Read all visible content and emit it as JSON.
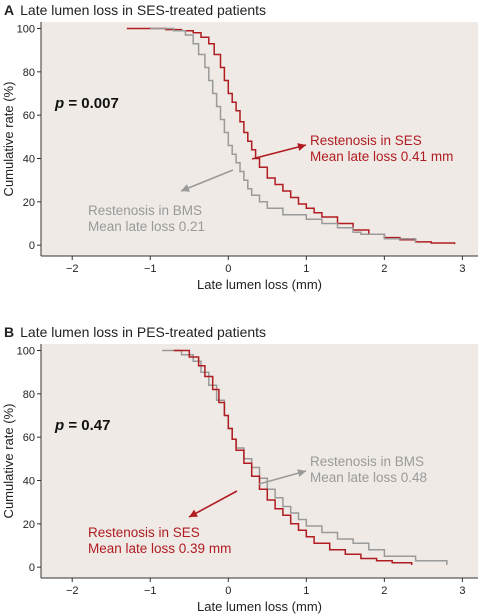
{
  "colors": {
    "ses": "#b01c22",
    "bms": "#9a9a9a",
    "background": "#efeae5"
  },
  "chart_data": [
    {
      "type": "line",
      "panel_letter": "A",
      "title": "Late lumen loss in SES-treated patients",
      "xlabel": "Late lumen loss (mm)",
      "ylabel": "Cumulative rate (%)",
      "xlim": [
        -2.4,
        3.2
      ],
      "ylim": [
        -5,
        103
      ],
      "x_ticks": [
        -2,
        -1,
        0,
        1,
        2,
        3
      ],
      "y_ticks": [
        0,
        20,
        40,
        60,
        80,
        100
      ],
      "p_symbol": "p",
      "p_text": "= 0.007",
      "series": [
        {
          "key": "ses",
          "color": "#b01c22",
          "x": [
            -1.3,
            -0.8,
            -0.6,
            -0.45,
            -0.35,
            -0.25,
            -0.18,
            -0.1,
            -0.05,
            0.0,
            0.05,
            0.1,
            0.15,
            0.2,
            0.25,
            0.3,
            0.35,
            0.4,
            0.5,
            0.6,
            0.7,
            0.8,
            0.9,
            1.0,
            1.1,
            1.2,
            1.4,
            1.6,
            1.8,
            2.0,
            2.2,
            2.4,
            2.6,
            2.9
          ],
          "y": [
            100,
            99.5,
            99,
            98,
            96,
            93,
            88,
            82,
            76,
            70,
            66,
            62,
            57,
            52,
            48,
            44,
            40,
            36,
            31,
            28,
            25,
            22,
            19,
            17,
            15,
            13,
            10,
            7,
            5,
            3.5,
            2.5,
            1.5,
            1,
            0.5
          ]
        },
        {
          "key": "bms",
          "color": "#9a9a9a",
          "x": [
            -1.0,
            -0.7,
            -0.55,
            -0.45,
            -0.38,
            -0.3,
            -0.25,
            -0.2,
            -0.15,
            -0.1,
            -0.05,
            0.0,
            0.05,
            0.1,
            0.15,
            0.2,
            0.25,
            0.3,
            0.4,
            0.5,
            0.7,
            1.0,
            1.2,
            1.4,
            1.6,
            1.7,
            2.0,
            2.4
          ],
          "y": [
            100,
            99,
            97,
            93,
            88,
            82,
            76,
            70,
            64,
            58,
            52,
            46,
            42,
            38,
            34,
            30,
            26,
            23,
            20,
            17,
            14,
            12,
            10,
            8,
            6,
            5,
            3,
            1
          ]
        }
      ],
      "annotations": [
        {
          "series": "ses",
          "lines": [
            "Restenosis in SES",
            "Mean late loss 0.41 mm"
          ]
        },
        {
          "series": "bms",
          "lines": [
            "Restenosis in BMS",
            "Mean late loss 0.21"
          ]
        }
      ]
    },
    {
      "type": "line",
      "panel_letter": "B",
      "title": "Late lumen loss in PES-treated patients",
      "xlabel": "Late lumen loss (mm)",
      "ylabel": "Cumulative rate (%)",
      "xlim": [
        -2.4,
        3.2
      ],
      "ylim": [
        -5,
        103
      ],
      "x_ticks": [
        -2,
        -1,
        0,
        1,
        2,
        3
      ],
      "y_ticks": [
        0,
        20,
        40,
        60,
        80,
        100
      ],
      "p_symbol": "p",
      "p_text": "= 0.47",
      "series": [
        {
          "key": "bms",
          "color": "#9a9a9a",
          "x": [
            -0.85,
            -0.6,
            -0.45,
            -0.35,
            -0.25,
            -0.15,
            -0.05,
            0.0,
            0.05,
            0.1,
            0.2,
            0.3,
            0.4,
            0.5,
            0.6,
            0.7,
            0.8,
            0.9,
            1.0,
            1.2,
            1.4,
            1.6,
            1.8,
            2.0,
            2.4,
            2.8
          ],
          "y": [
            100,
            98,
            95,
            90,
            84,
            77,
            70,
            64,
            59,
            55,
            50,
            46,
            41,
            36,
            32,
            28,
            25,
            22,
            19,
            16,
            13,
            11,
            8,
            5,
            3,
            1
          ]
        },
        {
          "key": "ses",
          "color": "#b01c22",
          "x": [
            -0.7,
            -0.5,
            -0.38,
            -0.3,
            -0.2,
            -0.12,
            -0.05,
            0.0,
            0.05,
            0.1,
            0.2,
            0.3,
            0.4,
            0.5,
            0.6,
            0.7,
            0.8,
            0.9,
            1.0,
            1.1,
            1.3,
            1.5,
            1.7,
            1.9,
            2.1,
            2.35
          ],
          "y": [
            100,
            97,
            93,
            88,
            82,
            76,
            70,
            64,
            59,
            54,
            48,
            42,
            36,
            31,
            27,
            24,
            20,
            17,
            14,
            11,
            8,
            6,
            4,
            3,
            2,
            1
          ]
        }
      ],
      "annotations": [
        {
          "series": "bms",
          "lines": [
            "Restenosis in BMS",
            "Mean late loss 0.48"
          ]
        },
        {
          "series": "ses",
          "lines": [
            "Restenosis in SES",
            "Mean late loss 0.39 mm"
          ]
        }
      ]
    }
  ]
}
